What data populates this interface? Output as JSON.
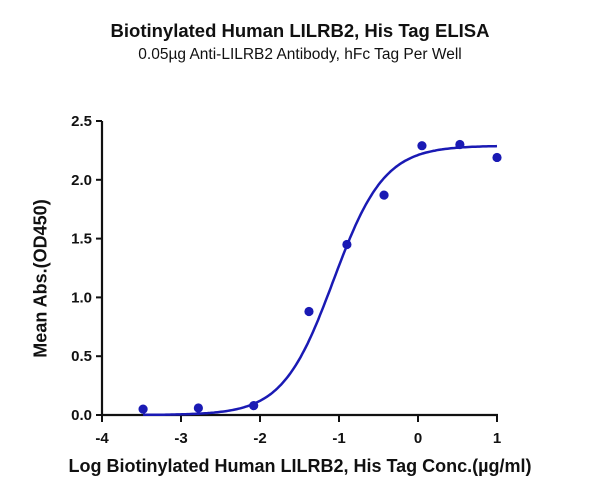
{
  "chart_data": {
    "type": "scatter",
    "title": "Biotinylated Human LILRB2, His Tag ELISA",
    "subtitle": "0.05µg Anti-LILRB2 Antibody, hFc Tag Per Well",
    "xlabel": "Log Biotinylated Human LILRB2, His Tag Conc.(µg/ml)",
    "ylabel": "Mean Abs.(OD450)",
    "xlim": [
      -4,
      1
    ],
    "ylim": [
      0,
      2.5
    ],
    "xticks": [
      "-4",
      "-3",
      "-2",
      "-1",
      "0",
      "1"
    ],
    "yticks": [
      "0.0",
      "0.5",
      "1.0",
      "1.5",
      "2.0",
      "2.5"
    ],
    "grid": false,
    "legend": null,
    "series": [
      {
        "name": "Data points",
        "x": [
          -3.48,
          -2.78,
          -2.08,
          -1.38,
          -0.9,
          -0.43,
          0.05,
          0.53,
          1.0
        ],
        "y": [
          0.05,
          0.06,
          0.08,
          0.88,
          1.45,
          1.87,
          2.29,
          2.3,
          2.19
        ],
        "color": "#1a1ab4"
      }
    ],
    "fit_curve": {
      "model": "4PL sigmoid",
      "bottom": 0.0,
      "top": 2.29,
      "logEC50": -1.07,
      "hill": 1.35,
      "x_range": [
        -3.48,
        1.0
      ],
      "color": "#1a1ab4"
    }
  }
}
